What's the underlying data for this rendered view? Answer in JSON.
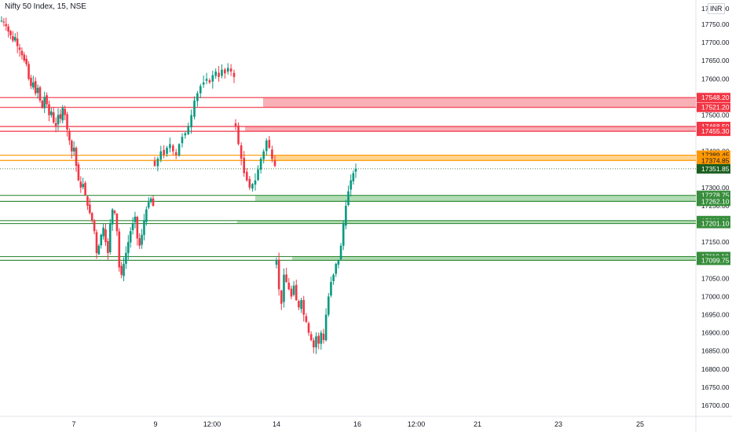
{
  "header": {
    "title": "Nifty 50 Index, 15, NSE",
    "currency": "INR"
  },
  "colors": {
    "up": "#089981",
    "down": "#f23645",
    "resistance_red": "#f23645",
    "resistance_fill": "#f7a1a9",
    "pivot_orange": "#ff9800",
    "pivot_fill": "#ffcc80",
    "support_green": "#388e3c",
    "support_fill": "#a5d6a7",
    "last_price_bg": "#1b5e20",
    "axis_text": "#131722"
  },
  "chart_data": {
    "type": "candlestick",
    "title": "Nifty 50 Index, 15, NSE",
    "ylim": [
      16680,
      17790
    ],
    "x_tick_labels": [
      "7",
      "9",
      "12:00",
      "14",
      "16",
      "12:00",
      "21",
      "23",
      "25"
    ],
    "y_tick_labels": [
      "17750.00",
      "17700.00",
      "17650.00",
      "17600.00",
      "17550.00",
      "17500.00",
      "17450.00",
      "17400.00",
      "17350.00",
      "17300.00",
      "17250.00",
      "17200.00",
      "17150.00",
      "17100.00",
      "17050.00",
      "17000.00",
      "16950.00",
      "16900.00",
      "16850.00",
      "16800.00",
      "16750.00",
      "16700.00"
    ],
    "price_labels": [
      {
        "value": "17548.20",
        "type": "resistance"
      },
      {
        "value": "17521.20",
        "type": "resistance"
      },
      {
        "value": "17468.50",
        "type": "resistance"
      },
      {
        "value": "17455.30",
        "type": "resistance"
      },
      {
        "value": "17389.45",
        "type": "pivot"
      },
      {
        "value": "17374.85",
        "type": "pivot"
      },
      {
        "value": "17351.85",
        "type": "last"
      },
      {
        "value": "17278.75",
        "type": "support"
      },
      {
        "value": "17262.10",
        "type": "support"
      },
      {
        "value": "17209.20",
        "type": "support"
      },
      {
        "value": "17201.10",
        "type": "support"
      },
      {
        "value": "17110.10",
        "type": "support"
      },
      {
        "value": "17099.75",
        "type": "support"
      }
    ],
    "zones": [
      {
        "top": 17548.2,
        "bottom": 17521.2,
        "type": "resistance"
      },
      {
        "top": 17468.5,
        "bottom": 17455.3,
        "type": "resistance"
      },
      {
        "top": 17389.45,
        "bottom": 17374.85,
        "type": "pivot"
      },
      {
        "top": 17278.75,
        "bottom": 17262.1,
        "type": "support"
      },
      {
        "top": 17209.2,
        "bottom": 17201.1,
        "type": "support"
      },
      {
        "top": 17110.1,
        "bottom": 17099.75,
        "type": "support"
      }
    ],
    "series": [
      {
        "segment": 1,
        "close": [
          17760,
          17755,
          17745,
          17730,
          17720,
          17705,
          17715,
          17690,
          17680,
          17665,
          17650,
          17640,
          17600,
          17580,
          17590,
          17560,
          17575,
          17540,
          17520,
          17550,
          17530,
          17500,
          17510,
          17480,
          17470,
          17500,
          17490,
          17520,
          17500,
          17460,
          17430,
          17400,
          17410,
          17360,
          17320,
          17300,
          17310,
          17280,
          17250,
          17230,
          17210,
          17180,
          17120,
          17140,
          17170,
          17190,
          17150,
          17120,
          17200,
          17240,
          17230,
          17180,
          17080,
          17060,
          17090,
          17120,
          17150,
          17180,
          17200,
          17220,
          17160,
          17140,
          17170,
          17210,
          17240,
          17260,
          17270,
          17250
        ]
      },
      {
        "segment": 2,
        "close": [
          17360,
          17380,
          17400,
          17390,
          17410,
          17420,
          17400,
          17390,
          17420,
          17440,
          17450,
          17470,
          17500,
          17540,
          17560,
          17580,
          17590,
          17600,
          17590,
          17610,
          17620,
          17605,
          17625,
          17615,
          17630,
          17620,
          17605
        ]
      },
      {
        "segment": 3,
        "close": [
          17470,
          17420,
          17380,
          17340,
          17320,
          17300,
          17310,
          17320,
          17350,
          17380,
          17400,
          17430,
          17410,
          17380,
          17360
        ]
      },
      {
        "segment": 4,
        "close": [
          17100,
          17020,
          16980,
          17060,
          17040,
          17020,
          17000,
          17030,
          16990,
          16970,
          16990,
          16950,
          16930,
          16900,
          16880,
          16860,
          16890,
          16870,
          16900,
          16880,
          16950,
          17000,
          17040,
          17060,
          17090,
          17100,
          17140,
          17200,
          17250,
          17290,
          17320,
          17340,
          17352
        ]
      }
    ]
  }
}
